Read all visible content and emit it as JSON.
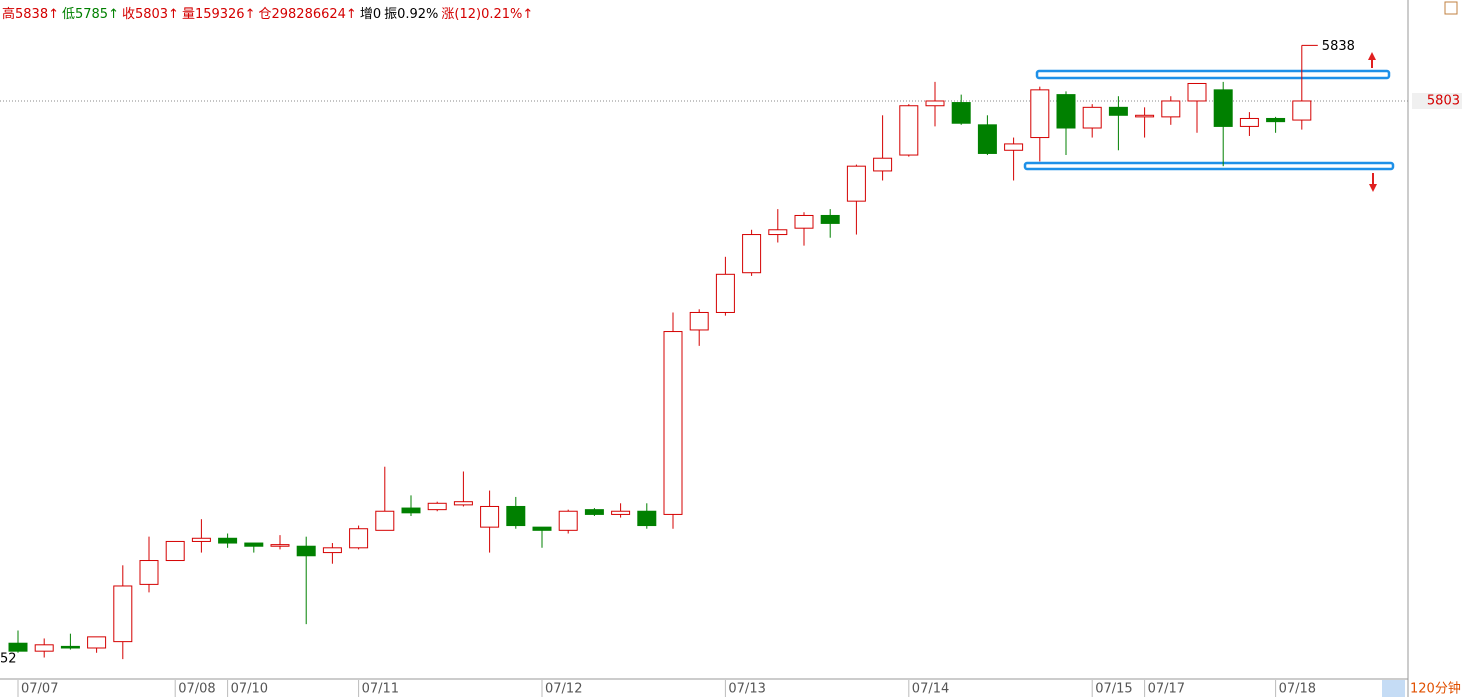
{
  "header": [
    {
      "text": "高5838↑",
      "color": "#d40000"
    },
    {
      "text": "低5785↑",
      "color": "#008000"
    },
    {
      "text": "收5803↑",
      "color": "#d40000"
    },
    {
      "text": "量159326↑",
      "color": "#d40000"
    },
    {
      "text": "仓298286624↑",
      "color": "#d40000"
    },
    {
      "text": "增0",
      "color": "#000000"
    },
    {
      "text": "振0.92%",
      "color": "#000000"
    },
    {
      "text": "涨(12)0.21%↑",
      "color": "#d40000"
    }
  ],
  "chart_data": {
    "type": "candlestick",
    "categories": [
      "07/07",
      null,
      null,
      null,
      null,
      null,
      "07/08",
      null,
      "07/10",
      null,
      null,
      null,
      null,
      "07/11",
      null,
      null,
      null,
      null,
      null,
      null,
      "07/12",
      null,
      null,
      null,
      null,
      null,
      null,
      "07/13",
      null,
      null,
      null,
      null,
      null,
      null,
      "07/14",
      null,
      null,
      null,
      null,
      null,
      null,
      "07/15",
      null,
      "07/17",
      null,
      null,
      null,
      null,
      "07/18",
      null
    ],
    "open": [
      5462,
      5457,
      5460,
      5459,
      5463,
      5499,
      5514,
      5526,
      5528,
      5525,
      5523,
      5523,
      5519,
      5522,
      5533,
      5547,
      5546,
      5549,
      5535,
      5548,
      5535,
      5533,
      5546,
      5543,
      5545,
      5543,
      5659,
      5670,
      5695,
      5719,
      5723,
      5731,
      5740,
      5759,
      5769,
      5800,
      5802,
      5788,
      5772,
      5780,
      5807,
      5786,
      5799,
      5793,
      5793,
      5803,
      5810,
      5787,
      5792,
      5791
    ],
    "high": [
      5470,
      5465,
      5468,
      5466,
      5511,
      5529,
      5526,
      5540,
      5531,
      5525,
      5530,
      5529,
      5525,
      5536,
      5573,
      5555,
      5551,
      5570,
      5558,
      5554,
      5535,
      5546,
      5547,
      5550,
      5550,
      5670,
      5672,
      5705,
      5722,
      5735,
      5733,
      5735,
      5763,
      5794,
      5801,
      5815,
      5807,
      5794,
      5780,
      5812,
      5809,
      5801,
      5806,
      5799,
      5806,
      5814,
      5815,
      5796,
      5793,
      5838
    ],
    "low": [
      5456,
      5453,
      5458,
      5456,
      5452,
      5494,
      5514,
      5519,
      5522,
      5519,
      5521,
      5474,
      5512,
      5521,
      5533,
      5542,
      5545,
      5548,
      5519,
      5534,
      5522,
      5531,
      5542,
      5541,
      5534,
      5534,
      5649,
      5668,
      5693,
      5714,
      5712,
      5717,
      5719,
      5753,
      5768,
      5787,
      5788,
      5769,
      5753,
      5765,
      5769,
      5780,
      5772,
      5780,
      5788,
      5783,
      5762,
      5781,
      5783,
      5785
    ],
    "close": [
      5457,
      5461,
      5459,
      5466,
      5498,
      5514,
      5526,
      5528,
      5525,
      5523,
      5524,
      5517,
      5522,
      5534,
      5545,
      5544,
      5550,
      5551,
      5548,
      5536,
      5533,
      5545,
      5543,
      5545,
      5536,
      5658,
      5670,
      5694,
      5719,
      5722,
      5731,
      5726,
      5762,
      5767,
      5800,
      5803,
      5789,
      5770,
      5776,
      5810,
      5786,
      5799,
      5794,
      5794,
      5803,
      5814,
      5787,
      5792,
      5790,
      5803
    ],
    "up_color": "#d40000",
    "down_color": "#008000",
    "ylim": [
      5439.5,
      5866.5
    ],
    "price_marker": 5803,
    "high_label": 5838,
    "low_label": "52",
    "period": "120分钟"
  }
}
